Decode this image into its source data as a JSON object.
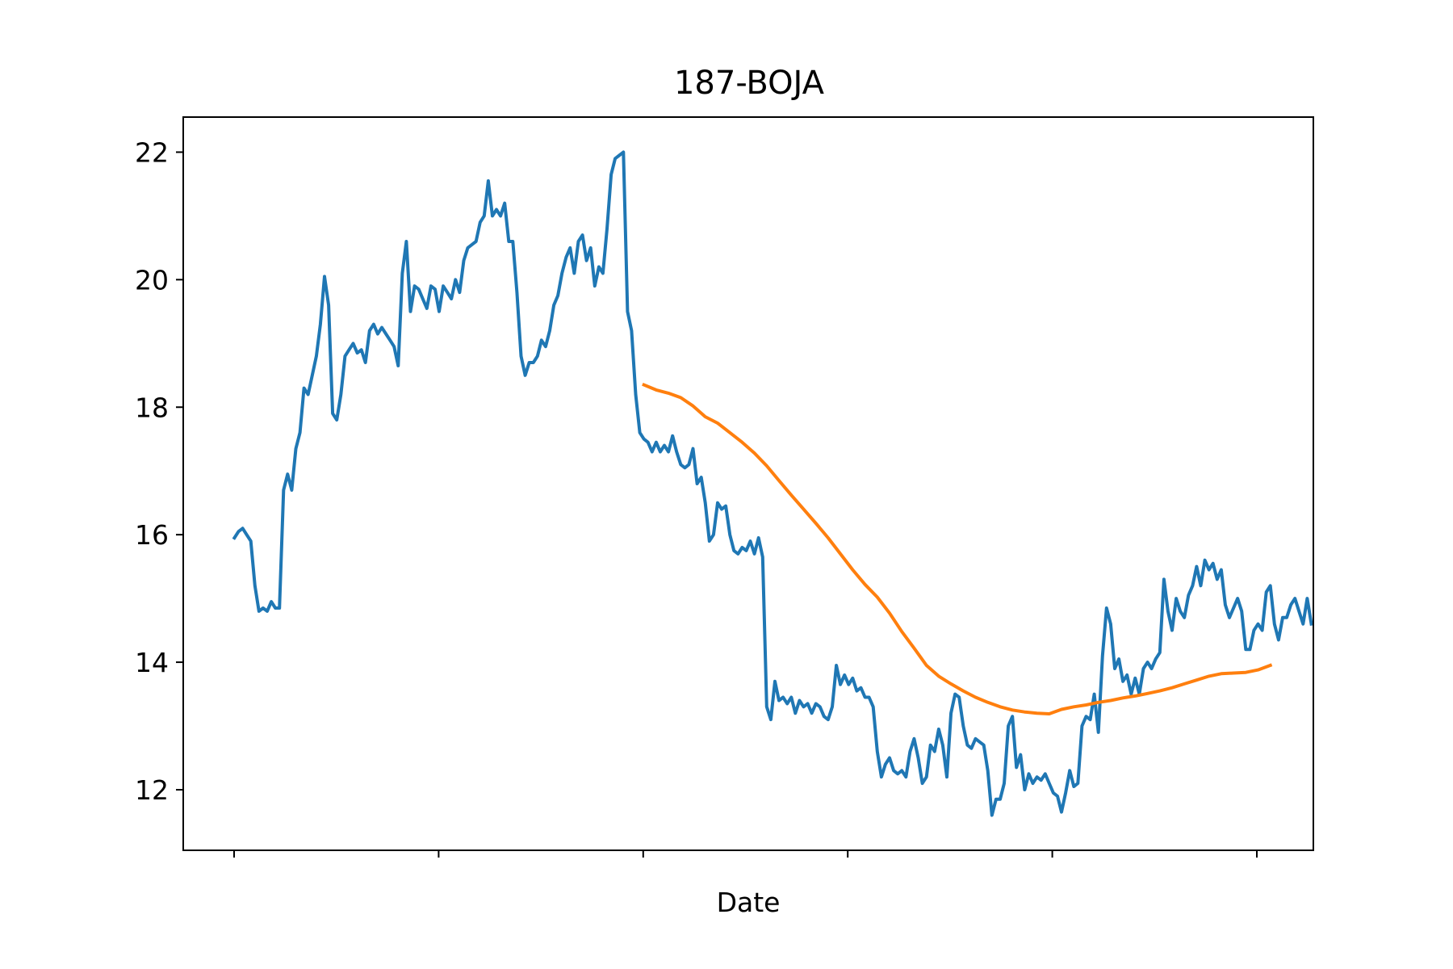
{
  "chart_data": {
    "type": "line",
    "title": "187-BOJA",
    "xlabel": "Date",
    "ylabel": "",
    "x_tick_count": 6,
    "x_tick_labels": [
      "",
      "",
      "",
      "",
      "",
      ""
    ],
    "xlim": [
      -25,
      527
    ],
    "ylim": [
      11.05,
      22.55
    ],
    "yticks": [
      12,
      14,
      16,
      18,
      20,
      22
    ],
    "grid": false,
    "colors": {
      "series1": "#1f77b4",
      "series2": "#ff7f0e"
    },
    "series": [
      {
        "points": [
          [
            0,
            15.95
          ],
          [
            2,
            16.05
          ],
          [
            4,
            16.1
          ],
          [
            6,
            16.0
          ],
          [
            8,
            15.9
          ],
          [
            10,
            15.2
          ],
          [
            12,
            14.8
          ],
          [
            14,
            14.85
          ],
          [
            16,
            14.8
          ],
          [
            18,
            14.95
          ],
          [
            20,
            14.85
          ],
          [
            22,
            14.85
          ],
          [
            24,
            16.7
          ],
          [
            26,
            16.95
          ],
          [
            28,
            16.7
          ],
          [
            30,
            17.35
          ],
          [
            32,
            17.6
          ],
          [
            34,
            18.3
          ],
          [
            36,
            18.2
          ],
          [
            38,
            18.5
          ],
          [
            40,
            18.8
          ],
          [
            42,
            19.3
          ],
          [
            44,
            20.05
          ],
          [
            46,
            19.6
          ],
          [
            48,
            17.9
          ],
          [
            50,
            17.8
          ],
          [
            52,
            18.2
          ],
          [
            54,
            18.8
          ],
          [
            56,
            18.9
          ],
          [
            58,
            19.0
          ],
          [
            60,
            18.85
          ],
          [
            62,
            18.9
          ],
          [
            64,
            18.7
          ],
          [
            66,
            19.2
          ],
          [
            68,
            19.3
          ],
          [
            70,
            19.15
          ],
          [
            72,
            19.25
          ],
          [
            74,
            19.15
          ],
          [
            76,
            19.05
          ],
          [
            78,
            18.95
          ],
          [
            80,
            18.65
          ],
          [
            82,
            20.1
          ],
          [
            84,
            20.6
          ],
          [
            86,
            19.5
          ],
          [
            88,
            19.9
          ],
          [
            90,
            19.85
          ],
          [
            92,
            19.7
          ],
          [
            94,
            19.55
          ],
          [
            96,
            19.9
          ],
          [
            98,
            19.85
          ],
          [
            100,
            19.5
          ],
          [
            102,
            19.9
          ],
          [
            104,
            19.8
          ],
          [
            106,
            19.7
          ],
          [
            108,
            20.0
          ],
          [
            110,
            19.8
          ],
          [
            112,
            20.3
          ],
          [
            114,
            20.5
          ],
          [
            116,
            20.55
          ],
          [
            118,
            20.6
          ],
          [
            120,
            20.9
          ],
          [
            122,
            21.0
          ],
          [
            124,
            21.55
          ],
          [
            126,
            21.0
          ],
          [
            128,
            21.1
          ],
          [
            130,
            21.0
          ],
          [
            132,
            21.2
          ],
          [
            134,
            20.6
          ],
          [
            136,
            20.6
          ],
          [
            138,
            19.8
          ],
          [
            140,
            18.8
          ],
          [
            142,
            18.5
          ],
          [
            144,
            18.7
          ],
          [
            146,
            18.7
          ],
          [
            148,
            18.8
          ],
          [
            150,
            19.05
          ],
          [
            152,
            18.95
          ],
          [
            154,
            19.2
          ],
          [
            156,
            19.6
          ],
          [
            158,
            19.75
          ],
          [
            160,
            20.1
          ],
          [
            162,
            20.35
          ],
          [
            164,
            20.5
          ],
          [
            166,
            20.1
          ],
          [
            168,
            20.6
          ],
          [
            170,
            20.7
          ],
          [
            172,
            20.3
          ],
          [
            174,
            20.5
          ],
          [
            176,
            19.9
          ],
          [
            178,
            20.2
          ],
          [
            180,
            20.1
          ],
          [
            182,
            20.8
          ],
          [
            184,
            21.65
          ],
          [
            186,
            21.9
          ],
          [
            188,
            21.95
          ],
          [
            190,
            22.0
          ],
          [
            192,
            19.5
          ],
          [
            194,
            19.2
          ],
          [
            196,
            18.2
          ],
          [
            198,
            17.6
          ],
          [
            200,
            17.5
          ],
          [
            202,
            17.45
          ],
          [
            204,
            17.3
          ],
          [
            206,
            17.45
          ],
          [
            208,
            17.3
          ],
          [
            210,
            17.4
          ],
          [
            212,
            17.3
          ],
          [
            214,
            17.55
          ],
          [
            216,
            17.3
          ],
          [
            218,
            17.1
          ],
          [
            220,
            17.05
          ],
          [
            222,
            17.1
          ],
          [
            224,
            17.35
          ],
          [
            226,
            16.8
          ],
          [
            228,
            16.9
          ],
          [
            230,
            16.5
          ],
          [
            232,
            15.9
          ],
          [
            234,
            16.0
          ],
          [
            236,
            16.5
          ],
          [
            238,
            16.4
          ],
          [
            240,
            16.45
          ],
          [
            242,
            16.0
          ],
          [
            244,
            15.75
          ],
          [
            246,
            15.7
          ],
          [
            248,
            15.8
          ],
          [
            250,
            15.75
          ],
          [
            252,
            15.9
          ],
          [
            254,
            15.7
          ],
          [
            256,
            15.95
          ],
          [
            258,
            15.65
          ],
          [
            260,
            13.3
          ],
          [
            262,
            13.1
          ],
          [
            264,
            13.7
          ],
          [
            266,
            13.4
          ],
          [
            268,
            13.45
          ],
          [
            270,
            13.35
          ],
          [
            272,
            13.45
          ],
          [
            274,
            13.2
          ],
          [
            276,
            13.4
          ],
          [
            278,
            13.3
          ],
          [
            280,
            13.35
          ],
          [
            282,
            13.2
          ],
          [
            284,
            13.35
          ],
          [
            286,
            13.3
          ],
          [
            288,
            13.15
          ],
          [
            290,
            13.1
          ],
          [
            292,
            13.3
          ],
          [
            294,
            13.95
          ],
          [
            296,
            13.65
          ],
          [
            298,
            13.8
          ],
          [
            300,
            13.65
          ],
          [
            302,
            13.75
          ],
          [
            304,
            13.55
          ],
          [
            306,
            13.6
          ],
          [
            308,
            13.45
          ],
          [
            310,
            13.45
          ],
          [
            312,
            13.3
          ],
          [
            314,
            12.6
          ],
          [
            316,
            12.2
          ],
          [
            318,
            12.4
          ],
          [
            320,
            12.5
          ],
          [
            322,
            12.3
          ],
          [
            324,
            12.25
          ],
          [
            326,
            12.3
          ],
          [
            328,
            12.2
          ],
          [
            330,
            12.6
          ],
          [
            332,
            12.8
          ],
          [
            334,
            12.5
          ],
          [
            336,
            12.1
          ],
          [
            338,
            12.2
          ],
          [
            340,
            12.7
          ],
          [
            342,
            12.6
          ],
          [
            344,
            12.95
          ],
          [
            346,
            12.7
          ],
          [
            348,
            12.2
          ],
          [
            350,
            13.2
          ],
          [
            352,
            13.5
          ],
          [
            354,
            13.45
          ],
          [
            356,
            13.0
          ],
          [
            358,
            12.7
          ],
          [
            360,
            12.65
          ],
          [
            362,
            12.8
          ],
          [
            364,
            12.75
          ],
          [
            366,
            12.7
          ],
          [
            368,
            12.3
          ],
          [
            370,
            11.6
          ],
          [
            372,
            11.85
          ],
          [
            374,
            11.85
          ],
          [
            376,
            12.1
          ],
          [
            378,
            13.0
          ],
          [
            380,
            13.15
          ],
          [
            382,
            12.35
          ],
          [
            384,
            12.55
          ],
          [
            386,
            12.0
          ],
          [
            388,
            12.25
          ],
          [
            390,
            12.1
          ],
          [
            392,
            12.2
          ],
          [
            394,
            12.15
          ],
          [
            396,
            12.25
          ],
          [
            398,
            12.1
          ],
          [
            400,
            11.95
          ],
          [
            402,
            11.9
          ],
          [
            404,
            11.65
          ],
          [
            406,
            11.95
          ],
          [
            408,
            12.3
          ],
          [
            410,
            12.05
          ],
          [
            412,
            12.1
          ],
          [
            414,
            13.0
          ],
          [
            416,
            13.15
          ],
          [
            418,
            13.1
          ],
          [
            420,
            13.5
          ],
          [
            422,
            12.9
          ],
          [
            424,
            14.1
          ],
          [
            426,
            14.85
          ],
          [
            428,
            14.6
          ],
          [
            430,
            13.9
          ],
          [
            432,
            14.05
          ],
          [
            434,
            13.7
          ],
          [
            436,
            13.8
          ],
          [
            438,
            13.5
          ],
          [
            440,
            13.75
          ],
          [
            442,
            13.5
          ],
          [
            444,
            13.9
          ],
          [
            446,
            14.0
          ],
          [
            448,
            13.9
          ],
          [
            450,
            14.05
          ],
          [
            452,
            14.15
          ],
          [
            454,
            15.3
          ],
          [
            456,
            14.8
          ],
          [
            458,
            14.5
          ],
          [
            460,
            15.0
          ],
          [
            462,
            14.8
          ],
          [
            464,
            14.7
          ],
          [
            466,
            15.05
          ],
          [
            468,
            15.2
          ],
          [
            470,
            15.5
          ],
          [
            472,
            15.2
          ],
          [
            474,
            15.6
          ],
          [
            476,
            15.45
          ],
          [
            478,
            15.55
          ],
          [
            480,
            15.3
          ],
          [
            482,
            15.45
          ],
          [
            484,
            14.9
          ],
          [
            486,
            14.7
          ],
          [
            488,
            14.85
          ],
          [
            490,
            15.0
          ],
          [
            492,
            14.8
          ],
          [
            494,
            14.2
          ],
          [
            496,
            14.2
          ],
          [
            498,
            14.5
          ],
          [
            500,
            14.6
          ],
          [
            502,
            14.5
          ],
          [
            504,
            15.1
          ],
          [
            506,
            15.2
          ],
          [
            508,
            14.6
          ],
          [
            510,
            14.35
          ],
          [
            512,
            14.7
          ],
          [
            514,
            14.7
          ],
          [
            516,
            14.9
          ],
          [
            518,
            15.0
          ],
          [
            520,
            14.8
          ],
          [
            522,
            14.6
          ],
          [
            524,
            15.0
          ],
          [
            526,
            14.6
          ]
        ]
      },
      {
        "points": [
          [
            200,
            18.35
          ],
          [
            206,
            18.27
          ],
          [
            212,
            18.22
          ],
          [
            218,
            18.15
          ],
          [
            224,
            18.02
          ],
          [
            230,
            17.85
          ],
          [
            236,
            17.75
          ],
          [
            242,
            17.6
          ],
          [
            248,
            17.45
          ],
          [
            254,
            17.28
          ],
          [
            260,
            17.08
          ],
          [
            266,
            16.85
          ],
          [
            272,
            16.62
          ],
          [
            278,
            16.4
          ],
          [
            284,
            16.18
          ],
          [
            290,
            15.95
          ],
          [
            296,
            15.7
          ],
          [
            302,
            15.45
          ],
          [
            308,
            15.22
          ],
          [
            314,
            15.02
          ],
          [
            320,
            14.77
          ],
          [
            326,
            14.48
          ],
          [
            332,
            14.22
          ],
          [
            338,
            13.95
          ],
          [
            344,
            13.78
          ],
          [
            350,
            13.66
          ],
          [
            356,
            13.55
          ],
          [
            362,
            13.45
          ],
          [
            368,
            13.37
          ],
          [
            374,
            13.3
          ],
          [
            380,
            13.25
          ],
          [
            386,
            13.22
          ],
          [
            392,
            13.2
          ],
          [
            398,
            13.19
          ],
          [
            404,
            13.26
          ],
          [
            410,
            13.3
          ],
          [
            416,
            13.33
          ],
          [
            422,
            13.37
          ],
          [
            428,
            13.4
          ],
          [
            434,
            13.44
          ],
          [
            440,
            13.47
          ],
          [
            446,
            13.51
          ],
          [
            452,
            13.55
          ],
          [
            458,
            13.6
          ],
          [
            464,
            13.66
          ],
          [
            470,
            13.72
          ],
          [
            476,
            13.78
          ],
          [
            482,
            13.82
          ],
          [
            488,
            13.83
          ],
          [
            494,
            13.84
          ],
          [
            500,
            13.88
          ],
          [
            506,
            13.95
          ]
        ]
      }
    ]
  }
}
